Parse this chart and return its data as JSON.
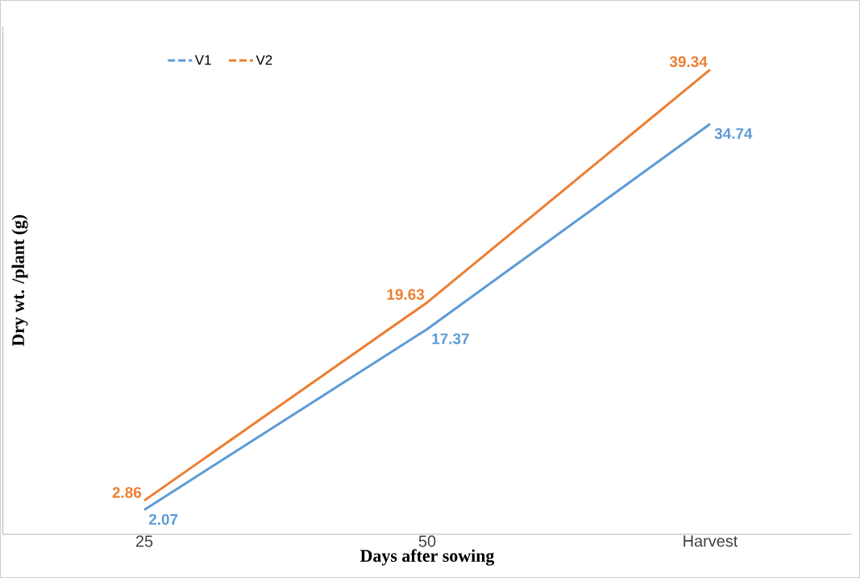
{
  "chart_data": {
    "type": "line",
    "xlabel": "Days after sowing",
    "ylabel": "Dry wt. /plant (g)",
    "categories": [
      "25",
      "50",
      "Harvest"
    ],
    "series": [
      {
        "name": "V1",
        "color": "#5b9bd5",
        "values": [
          2.07,
          17.37,
          34.74
        ]
      },
      {
        "name": "V2",
        "color": "#ed7d31",
        "values": [
          2.86,
          19.63,
          39.34
        ]
      }
    ],
    "ylim": [
      0,
      43
    ],
    "data_labels": true,
    "legend": "top left",
    "grid": false,
    "marker": "none",
    "line_style": "solid"
  }
}
